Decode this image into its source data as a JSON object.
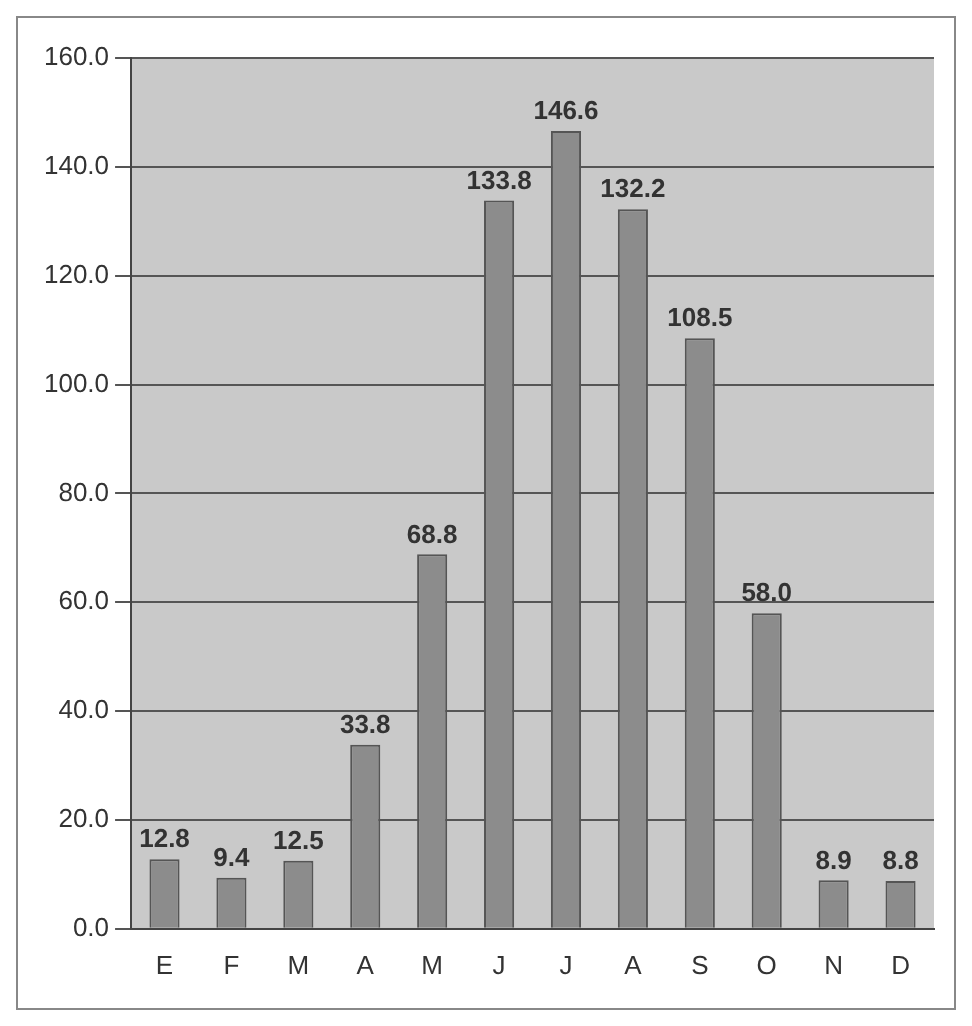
{
  "chart_data": {
    "type": "bar",
    "categories": [
      "E",
      "F",
      "M",
      "A",
      "M",
      "J",
      "J",
      "A",
      "S",
      "O",
      "N",
      "D"
    ],
    "values": [
      12.8,
      9.4,
      12.5,
      33.8,
      68.8,
      133.8,
      146.6,
      132.2,
      108.5,
      58.0,
      8.9,
      8.8
    ],
    "value_labels": [
      "12.8",
      "9.4",
      "12.5",
      "33.8",
      "68.8",
      "133.8",
      "146.6",
      "132.2",
      "108.5",
      "58.0",
      "8.9",
      "8.8"
    ],
    "color": "#8c8c8c",
    "ylim": [
      0,
      160
    ],
    "yticks": [
      {
        "value": 0,
        "label": "0.0"
      },
      {
        "value": 20,
        "label": "20.0"
      },
      {
        "value": 40,
        "label": "40.0"
      },
      {
        "value": 60,
        "label": "60.0"
      },
      {
        "value": 80,
        "label": "80.0"
      },
      {
        "value": 100,
        "label": "100.0"
      },
      {
        "value": 120,
        "label": "120.0"
      },
      {
        "value": 140,
        "label": "140.0"
      },
      {
        "value": 160,
        "label": "160.0"
      }
    ],
    "grid": "y",
    "legend": false
  }
}
